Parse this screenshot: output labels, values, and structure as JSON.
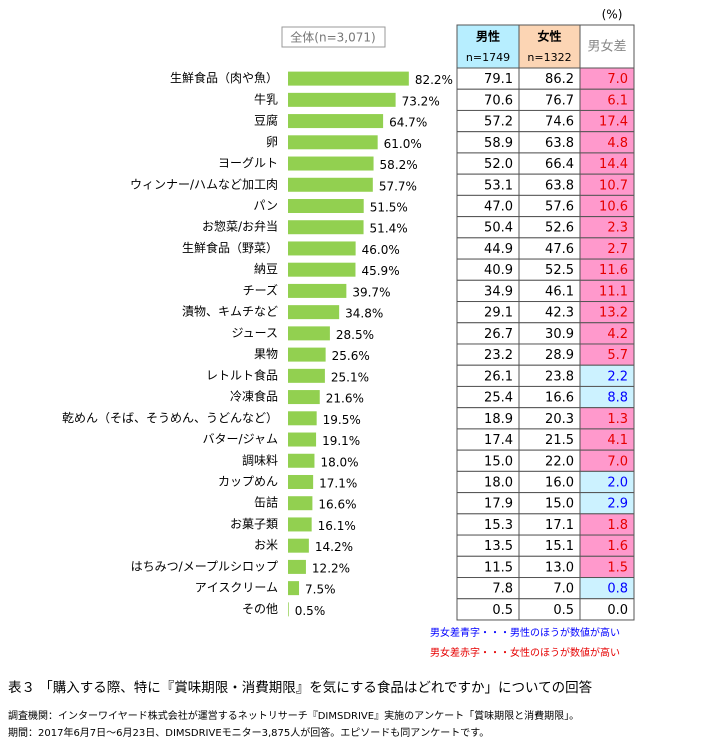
{
  "chart_data": {
    "type": "bar",
    "orientation": "horizontal",
    "title": "全体(n=3,071)",
    "color": "#92d050",
    "categories": [
      "生鮮食品（肉や魚）",
      "牛乳",
      "豆腐",
      "卵",
      "ヨーグルト",
      "ウィンナー/ハムなど加工肉",
      "パン",
      "お惣菜/お弁当",
      "生鮮食品（野菜）",
      "納豆",
      "チーズ",
      "漬物、キムチなど",
      "ジュース",
      "果物",
      "レトルト食品",
      "冷凍食品",
      "乾めん（そば、そうめん、うどんなど）",
      "バター/ジャム",
      "調味料",
      "カップめん",
      "缶詰",
      "お菓子類",
      "お米",
      "はちみつ/メープルシロップ",
      "アイスクリーム",
      "その他"
    ],
    "values": [
      82.2,
      73.2,
      64.7,
      61.0,
      58.2,
      57.7,
      51.5,
      51.4,
      46.0,
      45.9,
      39.7,
      34.8,
      28.5,
      25.6,
      25.1,
      21.6,
      19.5,
      19.1,
      18.0,
      17.1,
      16.6,
      16.1,
      14.2,
      12.2,
      7.5,
      0.5
    ],
    "value_labels": [
      "82.2%",
      "73.2%",
      "64.7%",
      "61.0%",
      "58.2%",
      "57.7%",
      "51.5%",
      "51.4%",
      "46.0%",
      "45.9%",
      "39.7%",
      "34.8%",
      "28.5%",
      "25.6%",
      "25.1%",
      "21.6%",
      "19.5%",
      "19.1%",
      "18.0%",
      "17.1%",
      "16.6%",
      "16.1%",
      "14.2%",
      "12.2%",
      "7.5%",
      "0.5%"
    ]
  },
  "table": {
    "unit": "(%)",
    "headers": [
      {
        "title": "男性",
        "n": "n=1749"
      },
      {
        "title": "女性",
        "n": "n=1322"
      },
      {
        "title": "男女差"
      }
    ],
    "rows": [
      [
        "79.1",
        "86.2",
        "7.0"
      ],
      [
        "70.6",
        "76.7",
        "6.1"
      ],
      [
        "57.2",
        "74.6",
        "17.4"
      ],
      [
        "58.9",
        "63.8",
        "4.8"
      ],
      [
        "52.0",
        "66.4",
        "14.4"
      ],
      [
        "53.1",
        "63.8",
        "10.7"
      ],
      [
        "47.0",
        "57.6",
        "10.6"
      ],
      [
        "50.4",
        "52.6",
        "2.3"
      ],
      [
        "44.9",
        "47.6",
        "2.7"
      ],
      [
        "40.9",
        "52.5",
        "11.6"
      ],
      [
        "34.9",
        "46.1",
        "11.1"
      ],
      [
        "29.1",
        "42.3",
        "13.2"
      ],
      [
        "26.7",
        "30.9",
        "4.2"
      ],
      [
        "23.2",
        "28.9",
        "5.7"
      ],
      [
        "26.1",
        "23.8",
        "2.2"
      ],
      [
        "25.4",
        "16.6",
        "8.8"
      ],
      [
        "18.9",
        "20.3",
        "1.3"
      ],
      [
        "17.4",
        "21.5",
        "4.1"
      ],
      [
        "15.0",
        "22.0",
        "7.0"
      ],
      [
        "18.0",
        "16.0",
        "2.0"
      ],
      [
        "17.9",
        "15.0",
        "2.9"
      ],
      [
        "15.3",
        "17.1",
        "1.8"
      ],
      [
        "13.5",
        "15.1",
        "1.6"
      ],
      [
        "11.5",
        "13.0",
        "1.5"
      ],
      [
        "7.8",
        "7.0",
        "0.8"
      ],
      [
        "0.5",
        "0.5",
        "0.0"
      ]
    ],
    "diff_higher": [
      "female",
      "female",
      "female",
      "female",
      "female",
      "female",
      "female",
      "female",
      "female",
      "female",
      "female",
      "female",
      "female",
      "female",
      "male",
      "male",
      "female",
      "female",
      "female",
      "male",
      "male",
      "female",
      "female",
      "female",
      "male",
      null
    ]
  },
  "notes": {
    "blue": "男女差青字・・・男性のほうが数値が高い",
    "red": "男女差赤字・・・女性のほうが数値が高い"
  },
  "caption": "表３ 「購入する際、特に『賞味期限・消費期限』を気にする食品はどれですか」についての回答",
  "source": [
    "調査機関：インターワイヤード株式会社が運営するネットリサーチ『DIMSDRIVE』実施のアンケート「賞味期限と消費期限」。",
    "期間：2017年6月7日～6月23日、DIMSDRIVEモニター3,875人が回答。エピソードも同アンケートです。"
  ]
}
